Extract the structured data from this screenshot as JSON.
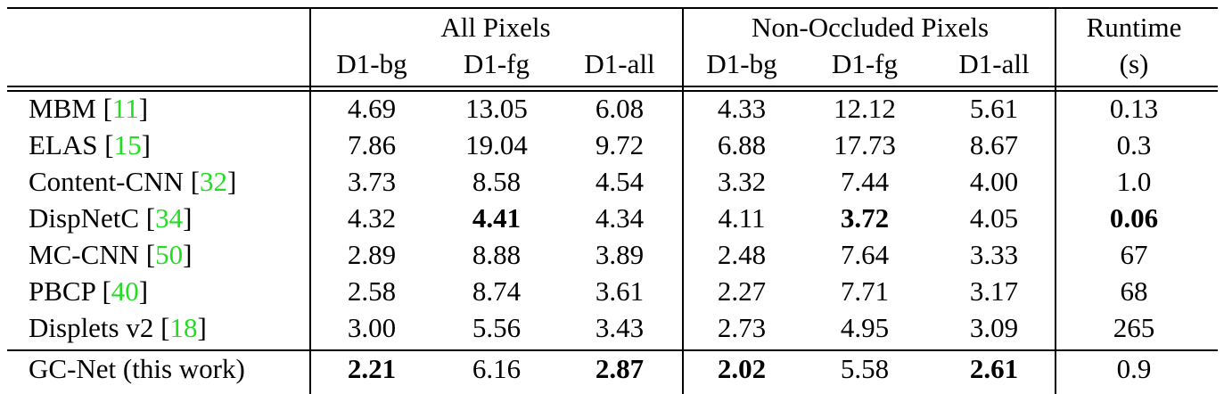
{
  "table": {
    "groups": [
      "All Pixels",
      "Non-Occluded Pixels"
    ],
    "runtime": [
      "Runtime",
      "(s)"
    ],
    "subcolumns": [
      "D1-bg",
      "D1-fg",
      "D1-all",
      "D1-bg",
      "D1-fg",
      "D1-all"
    ],
    "rows": [
      {
        "method": "MBM",
        "ref": [
          "[",
          "11",
          "]"
        ],
        "values": [
          "4.69",
          "13.05",
          "6.08",
          "4.33",
          "12.12",
          "5.61",
          "0.13"
        ],
        "bold": []
      },
      {
        "method": "ELAS",
        "ref": [
          "[",
          "15",
          "]"
        ],
        "values": [
          "7.86",
          "19.04",
          "9.72",
          "6.88",
          "17.73",
          "8.67",
          "0.3"
        ],
        "bold": []
      },
      {
        "method": "Content-CNN",
        "ref": [
          "[",
          "32",
          "]"
        ],
        "values": [
          "3.73",
          "8.58",
          "4.54",
          "3.32",
          "7.44",
          "4.00",
          "1.0"
        ],
        "bold": []
      },
      {
        "method": "DispNetC",
        "ref": [
          "[",
          "34",
          "]"
        ],
        "values": [
          "4.32",
          "4.41",
          "4.34",
          "4.11",
          "3.72",
          "4.05",
          "0.06"
        ],
        "bold": [
          1,
          4,
          6
        ]
      },
      {
        "method": "MC-CNN",
        "ref": [
          "[",
          "50",
          "]"
        ],
        "values": [
          "2.89",
          "8.88",
          "3.89",
          "2.48",
          "7.64",
          "3.33",
          "67"
        ],
        "bold": []
      },
      {
        "method": "PBCP",
        "ref": [
          "[",
          "40",
          "]"
        ],
        "values": [
          "2.58",
          "8.74",
          "3.61",
          "2.27",
          "7.71",
          "3.17",
          "68"
        ],
        "bold": []
      },
      {
        "method": "Displets v2",
        "ref": [
          "[",
          "18",
          "]"
        ],
        "values": [
          "3.00",
          "5.56",
          "3.43",
          "2.73",
          "4.95",
          "3.09",
          "265"
        ],
        "bold": []
      },
      {
        "method": "GC-Net (this work)",
        "ref": [],
        "values": [
          "2.21",
          "6.16",
          "2.87",
          "2.02",
          "5.58",
          "2.61",
          "0.9"
        ],
        "bold": [
          0,
          2,
          3,
          5
        ]
      }
    ]
  }
}
